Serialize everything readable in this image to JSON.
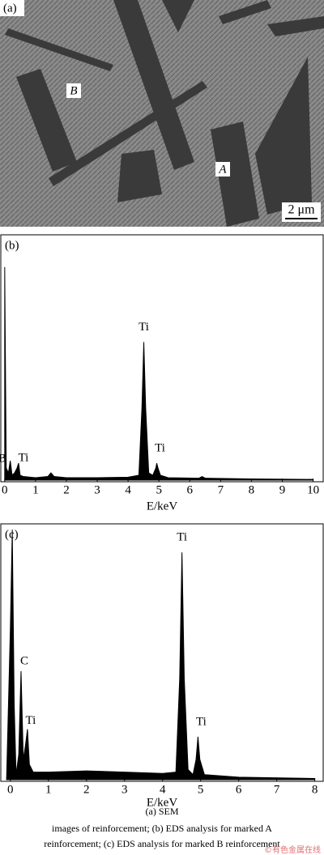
{
  "panel_a": {
    "label": "(a)",
    "markers": [
      "B",
      "A"
    ],
    "scale_bar": "2 μm"
  },
  "chart_data": [
    {
      "type": "area",
      "label": "(b)",
      "x_label": "E/keV",
      "color": "#000000",
      "x": [
        0,
        0.05,
        0.12,
        0.18,
        0.24,
        0.32,
        0.4,
        0.45,
        0.5,
        0.6,
        1.0,
        1.4,
        1.5,
        1.6,
        2.0,
        3.0,
        4.0,
        4.35,
        4.45,
        4.51,
        4.57,
        4.67,
        4.8,
        4.9,
        4.93,
        4.97,
        5.05,
        5.3,
        6.3,
        6.4,
        6.5,
        8,
        10
      ],
      "values": [
        88,
        5,
        3,
        8,
        2,
        3,
        5,
        7,
        2,
        1.5,
        1,
        1.5,
        3,
        1.5,
        1,
        1,
        1.2,
        2,
        30,
        57,
        30,
        3,
        2,
        5,
        7,
        5,
        2,
        1,
        0.8,
        1.5,
        0.8,
        0.5,
        0.3
      ],
      "xlim": [
        -0.1,
        10.3
      ],
      "ylim": [
        0,
        100
      ],
      "xticks": [
        0,
        1,
        2,
        3,
        4,
        5,
        6,
        7,
        8,
        9,
        10
      ],
      "annotations": [
        "B",
        "Ti",
        "Ti",
        "Ti"
      ]
    },
    {
      "type": "area",
      "label": "(c)",
      "x_label": "E/keV",
      "color": "#000000",
      "x": [
        -0.1,
        0,
        0.05,
        0.1,
        0.15,
        0.22,
        0.28,
        0.34,
        0.4,
        0.45,
        0.5,
        0.6,
        1,
        2,
        3,
        4,
        4.35,
        4.45,
        4.51,
        4.57,
        4.67,
        4.8,
        4.88,
        4.93,
        4.98,
        5.1,
        6,
        8
      ],
      "values": [
        0,
        60,
        99,
        30,
        2,
        10,
        43,
        8,
        14,
        20,
        6,
        3,
        3,
        3.5,
        3,
        2.5,
        3,
        40,
        90,
        40,
        4,
        2,
        8,
        17,
        8,
        2,
        1,
        0.5
      ],
      "xlim": [
        -0.23,
        8.2
      ],
      "ylim": [
        0,
        100
      ],
      "xticks": [
        0,
        1,
        2,
        3,
        4,
        5,
        6,
        7,
        8
      ],
      "annotations": [
        "C",
        "Ti",
        "Ti",
        "Ti"
      ]
    }
  ],
  "caption": {
    "line1": "(a)  SEM",
    "line2": "images of reinforcement; (b) EDS analysis for marked A",
    "line3": "reinforcement; (c) EDS analysis for marked B reinforcement"
  },
  "watermark": "©有色金属在线"
}
